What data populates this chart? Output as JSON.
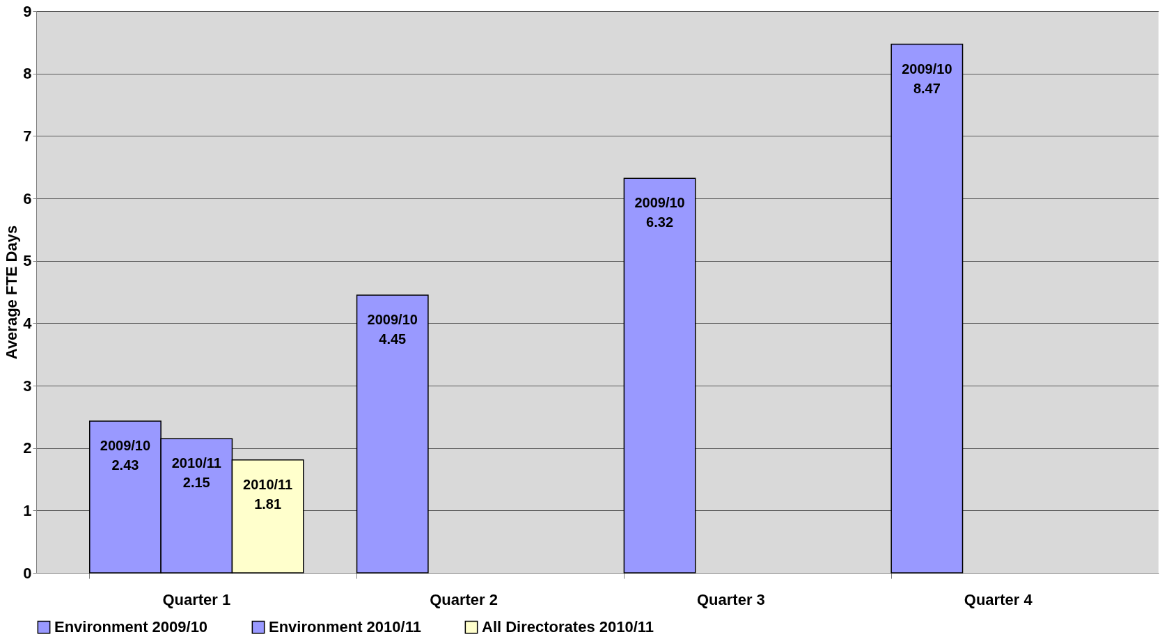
{
  "chart_data": {
    "type": "bar",
    "ylabel": "Average FTE Days",
    "categories": [
      "Quarter 1",
      "Quarter 2",
      "Quarter 3",
      "Quarter 4"
    ],
    "series": [
      {
        "name": "Environment 2009/10",
        "color": "#9999ff",
        "values": [
          2.43,
          4.45,
          6.32,
          8.47
        ],
        "value_labels": [
          "2009/10\n2.43",
          "2009/10\n4.45",
          "2009/10\n6.32",
          "2009/10\n8.47"
        ]
      },
      {
        "name": "Environment 2010/11",
        "color": "#9999ff",
        "values": [
          2.15,
          null,
          null,
          null
        ],
        "value_labels": [
          "2010/11\n2.15",
          null,
          null,
          null
        ]
      },
      {
        "name": "All Directorates 2010/11",
        "color": "#ffffcc",
        "values": [
          1.81,
          null,
          null,
          null
        ],
        "value_labels": [
          "2010/11\n1.81",
          null,
          null,
          null
        ]
      }
    ],
    "ylim": [
      0,
      9
    ],
    "yticks": [
      0,
      1,
      2,
      3,
      4,
      5,
      6,
      7,
      8,
      9
    ],
    "grid": "y",
    "legend": "bottom"
  }
}
